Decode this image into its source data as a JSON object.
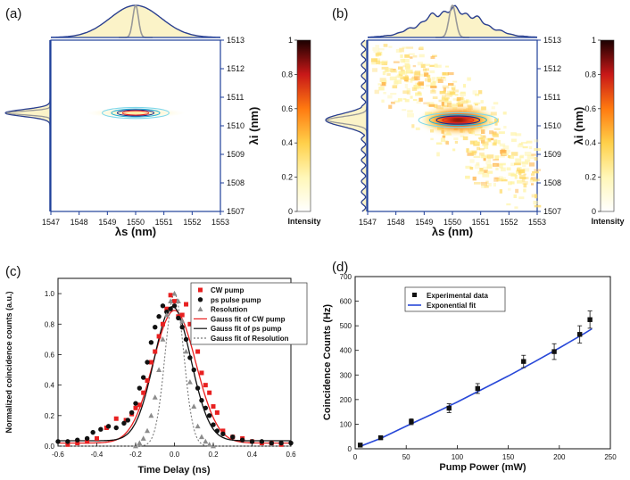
{
  "panels": {
    "a": {
      "label": "(a)"
    },
    "b": {
      "label": "(b)"
    },
    "c": {
      "label": "(c)"
    },
    "d": {
      "label": "(d)"
    }
  },
  "colors": {
    "axis_blue": "#1f3f9a",
    "marginal_fill": "#fbf3c8",
    "marginal_line": "#2a3f8f",
    "resolution_line": "#999999",
    "cw": "#e82020",
    "ps": "#111111",
    "res": "#8c8c8c",
    "fit_blue": "#2848d8"
  },
  "chart_data": [
    {
      "id": "a",
      "type": "heatmap",
      "title": "",
      "xlabel": "λs (nm)",
      "ylabel": "λi (nm)",
      "xlim": [
        1547,
        1553
      ],
      "ylim": [
        1507,
        1513
      ],
      "x_ticks": [
        "1547",
        "1548",
        "1549",
        "1550",
        "1551",
        "1552",
        "1553"
      ],
      "y_ticks": [
        "1507",
        "1508",
        "1509",
        "1510",
        "1511",
        "1512",
        "1513"
      ],
      "colorbar": {
        "label": "Intensity",
        "range": [
          0,
          1
        ],
        "ticks": [
          "0",
          "0.2",
          "0.4",
          "0.6",
          "0.8",
          "1"
        ]
      },
      "center": [
        1550.0,
        1510.45
      ],
      "contour_sigma_x_nm": 0.55,
      "contour_sigma_y_nm": 0.09,
      "contour_levels": [
        0.1,
        0.3,
        0.5,
        0.7
      ],
      "marginal_top": {
        "gaussian_center": 1550.0,
        "gaussian_sigma": 0.9,
        "resolution_sigma": 0.1
      },
      "marginal_left": {
        "gaussian_center": 1510.45,
        "gaussian_sigma": 0.12
      }
    },
    {
      "id": "b",
      "type": "heatmap",
      "title": "",
      "xlabel": "λs (nm)",
      "ylabel": "λi (nm)",
      "xlim": [
        1547,
        1553
      ],
      "ylim": [
        1507,
        1513
      ],
      "x_ticks": [
        "1547",
        "1548",
        "1549",
        "1550",
        "1551",
        "1552",
        "1553"
      ],
      "y_ticks": [
        "1507",
        "1508",
        "1509",
        "1510",
        "1511",
        "1512",
        "1513"
      ],
      "colorbar": {
        "label": "Intensity",
        "range": [
          0,
          1
        ],
        "ticks": [
          "0",
          "0.2",
          "0.4",
          "0.6",
          "0.8",
          "1"
        ]
      },
      "center": [
        1550.2,
        1510.2
      ],
      "contour_sigma_x_nm": 0.65,
      "contour_sigma_y_nm": 0.12,
      "contour_levels": [
        0.1,
        0.3,
        0.5,
        0.7
      ],
      "marginal_top": {
        "gaussian_center": 1550.0,
        "gaussian_sigma": 1.0,
        "resolution_sigma": 0.12
      },
      "marginal_left": {
        "gaussian_center": 1510.2,
        "gaussian_sigma": 0.22
      }
    },
    {
      "id": "c",
      "type": "scatter",
      "title": "",
      "xlabel": "Time Delay (ns)",
      "ylabel": "Normalized coincidence counts (a.u.)",
      "xlim": [
        -0.6,
        0.6
      ],
      "ylim": [
        0,
        1.1
      ],
      "x_ticks": [
        "-0.6",
        "-0.4",
        "-0.2",
        "0.0",
        "0.2",
        "0.4",
        "0.6"
      ],
      "y_ticks": [
        "0.0",
        "0.2",
        "0.4",
        "0.6",
        "0.8",
        "1.0"
      ],
      "legend": [
        "CW pump",
        "ps pulse pump",
        "Resolution",
        "Gauss fit of CW pump",
        "Gauss fit of ps pump",
        "Gauss fit of Resolution"
      ],
      "series": [
        {
          "name": "CW pump",
          "marker": "square",
          "x": [
            -0.55,
            -0.5,
            -0.45,
            -0.4,
            -0.35,
            -0.3,
            -0.25,
            -0.22,
            -0.2,
            -0.18,
            -0.16,
            -0.14,
            -0.12,
            -0.1,
            -0.08,
            -0.06,
            -0.04,
            -0.02,
            0.0,
            0.02,
            0.04,
            0.06,
            0.08,
            0.1,
            0.12,
            0.14,
            0.16,
            0.18,
            0.2,
            0.22,
            0.25,
            0.3,
            0.35,
            0.4,
            0.45,
            0.5,
            0.55
          ],
          "y": [
            0.01,
            0.02,
            0.03,
            0.05,
            0.12,
            0.18,
            0.17,
            0.21,
            0.25,
            0.27,
            0.35,
            0.43,
            0.55,
            0.62,
            0.72,
            0.8,
            0.9,
            0.99,
            0.95,
            0.85,
            0.86,
            0.93,
            0.8,
            0.7,
            0.62,
            0.48,
            0.4,
            0.35,
            0.26,
            0.22,
            0.1,
            0.06,
            0.05,
            0.03,
            0.02,
            0.02,
            0.01
          ]
        },
        {
          "name": "ps pulse pump",
          "marker": "circle",
          "x": [
            -0.6,
            -0.55,
            -0.5,
            -0.45,
            -0.42,
            -0.38,
            -0.34,
            -0.3,
            -0.26,
            -0.24,
            -0.22,
            -0.2,
            -0.18,
            -0.16,
            -0.14,
            -0.12,
            -0.1,
            -0.08,
            -0.06,
            -0.04,
            -0.02,
            0.0,
            0.02,
            0.04,
            0.06,
            0.08,
            0.1,
            0.12,
            0.14,
            0.16,
            0.18,
            0.2,
            0.22,
            0.25,
            0.3,
            0.35,
            0.4,
            0.45,
            0.5,
            0.55,
            0.6
          ],
          "y": [
            0.03,
            0.03,
            0.04,
            0.05,
            0.09,
            0.11,
            0.13,
            0.12,
            0.15,
            0.17,
            0.22,
            0.28,
            0.38,
            0.45,
            0.55,
            0.68,
            0.78,
            0.85,
            0.92,
            0.88,
            0.9,
            0.92,
            0.84,
            0.78,
            0.7,
            0.58,
            0.5,
            0.38,
            0.3,
            0.25,
            0.2,
            0.14,
            0.1,
            0.08,
            0.06,
            0.04,
            0.03,
            0.03,
            0.02,
            0.02,
            0.02
          ]
        },
        {
          "name": "Resolution",
          "marker": "triangle",
          "x": [
            -0.2,
            -0.18,
            -0.16,
            -0.14,
            -0.12,
            -0.1,
            -0.08,
            -0.06,
            -0.04,
            -0.02,
            0.0,
            0.02,
            0.04,
            0.06,
            0.08,
            0.1,
            0.12,
            0.14,
            0.16,
            0.18,
            0.2
          ],
          "y": [
            0.0,
            0.02,
            0.05,
            0.1,
            0.2,
            0.32,
            0.5,
            0.7,
            0.86,
            0.95,
            1.0,
            0.95,
            0.82,
            0.62,
            0.42,
            0.26,
            0.13,
            0.06,
            0.03,
            0.01,
            0.0
          ]
        },
        {
          "name": "Gauss fit of CW pump",
          "type": "gauss",
          "y0": 0.02,
          "A": 0.87,
          "xc": 0.0,
          "sigma": 0.11
        },
        {
          "name": "Gauss fit of ps pump",
          "type": "gauss",
          "y0": 0.035,
          "A": 0.88,
          "xc": -0.01,
          "sigma": 0.095
        },
        {
          "name": "Gauss fit of Resolution",
          "type": "gauss",
          "y0": 0.0,
          "A": 1.0,
          "xc": 0.0,
          "sigma": 0.048
        }
      ]
    },
    {
      "id": "d",
      "type": "scatter",
      "title": "",
      "xlabel": "Pump Power (mW)",
      "ylabel": "Coincidence Counts (Hz)",
      "xlim": [
        0,
        250
      ],
      "ylim": [
        0,
        700
      ],
      "x_ticks": [
        "0",
        "50",
        "100",
        "150",
        "200",
        "250"
      ],
      "y_ticks": [
        "0",
        "100",
        "200",
        "300",
        "400",
        "500",
        "600",
        "700"
      ],
      "legend": [
        "Experimental data",
        "Exponential fit"
      ],
      "series": [
        {
          "name": "Experimental data",
          "marker": "square",
          "x": [
            5,
            25,
            55,
            92,
            120,
            165,
            195,
            220,
            230
          ],
          "y": [
            15,
            45,
            110,
            165,
            245,
            355,
            395,
            465,
            525
          ],
          "err": [
            5,
            8,
            12,
            18,
            20,
            25,
            32,
            35,
            35
          ]
        },
        {
          "name": "Exponential fit",
          "type": "line",
          "x": [
            5,
            25,
            50,
            75,
            100,
            125,
            150,
            175,
            200,
            225,
            232
          ],
          "y": [
            10,
            42,
            92,
            140,
            190,
            243,
            296,
            352,
            410,
            470,
            488
          ]
        }
      ]
    }
  ]
}
